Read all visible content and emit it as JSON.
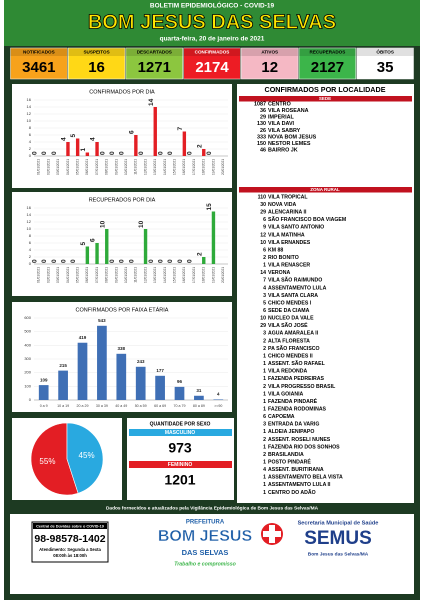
{
  "header": {
    "subtitle": "BOLETIM EPIDEMIOLÓGICO - COVID-19",
    "title": "BOM JESUS DAS SELVAS",
    "date": "quarta-feira, 20 de janeiro de 2021"
  },
  "stats": [
    {
      "label": "NOTIFICADOS",
      "value": 3461,
      "color": "#f7a21b"
    },
    {
      "label": "SUSPEITOS",
      "value": 16,
      "color": "#ffd816"
    },
    {
      "label": "DESCARTADOS",
      "value": 1271,
      "color": "#8cc63f"
    },
    {
      "label": "CONFIRMADOS",
      "value": 2174,
      "color": "#ed1c24"
    },
    {
      "label": "ATIVOS",
      "value": 12,
      "color": "#f5b8c4"
    },
    {
      "label": "RECUPERADOS",
      "value": 2127,
      "color": "#3cb54a"
    },
    {
      "label": "ÓBITOS",
      "value": 35,
      "color": "#ffffff"
    }
  ],
  "chart_data": [
    {
      "type": "bar",
      "title": "CONFIRMADOS POR DIA",
      "color": "#e31e24",
      "categories": [
        "01/01/2021",
        "02/01/2021",
        "03/01/2021",
        "04/01/2021",
        "05/01/2021",
        "06/01/2021",
        "07/01/2021",
        "08/01/2021",
        "09/01/2021",
        "10/01/2021",
        "11/01/2021",
        "12/01/2021",
        "13/01/2021",
        "14/01/2021",
        "15/01/2021",
        "16/01/2021",
        "17/01/2021",
        "18/01/2021",
        "19/01/2021",
        "20/01/2021"
      ],
      "values": [
        0,
        0,
        0,
        4,
        5,
        1,
        4,
        0,
        0,
        0,
        6,
        0,
        14,
        0,
        0,
        7,
        0,
        2,
        0,
        null
      ],
      "ylim": [
        0,
        16
      ],
      "yticks": [
        0,
        2,
        4,
        6,
        8,
        10,
        12,
        14,
        16
      ]
    },
    {
      "type": "bar",
      "title": "RECUPERADOS POR DIA",
      "color": "#2eaa3a",
      "categories": [
        "01/01/2021",
        "02/01/2021",
        "03/01/2021",
        "04/01/2021",
        "05/01/2021",
        "06/01/2021",
        "07/01/2021",
        "08/01/2021",
        "09/01/2021",
        "10/01/2021",
        "11/01/2021",
        "12/01/2021",
        "13/01/2021",
        "14/01/2021",
        "15/01/2021",
        "16/01/2021",
        "17/01/2021",
        "18/01/2021",
        "19/01/2021",
        "20/01/2021"
      ],
      "values": [
        0,
        0,
        0,
        0,
        0,
        5,
        6,
        10,
        0,
        0,
        0,
        10,
        0,
        0,
        0,
        0,
        0,
        2,
        15,
        null
      ],
      "ylim": [
        0,
        16
      ],
      "yticks": [
        0,
        2,
        4,
        6,
        8,
        10,
        12,
        14,
        16
      ]
    },
    {
      "type": "bar",
      "title": "CONFIRMADOS POR FAIXA ETÁRIA",
      "color": "#3f6fb5",
      "categories": [
        "0 a 9",
        "10 a 19",
        "20 a 29",
        "30 a 39",
        "40 a 49",
        "50 a 59",
        "60 a 69",
        "70 a 79",
        "80 a 89",
        ">=90"
      ],
      "values": [
        109,
        215,
        419,
        543,
        338,
        243,
        177,
        96,
        31,
        4
      ],
      "ylim": [
        0,
        600
      ],
      "yticks": [
        0,
        100,
        200,
        300,
        400,
        500,
        600
      ]
    },
    {
      "type": "pie",
      "values": [
        55,
        45
      ],
      "value_labels": [
        "55%",
        "45%"
      ],
      "colors": [
        "#e31e24",
        "#29a9e0"
      ]
    }
  ],
  "sex": {
    "title": "QUANTIDADE POR SEXO",
    "male_label": "MASCULINO",
    "male": 973,
    "female_label": "FEMININO",
    "female": 1201
  },
  "localidades": {
    "title": "CONFIRMADOS POR LOCALIDADE",
    "sede_label": "SEDE",
    "sede": [
      {
        "count": 1087,
        "name": "CENTRO"
      },
      {
        "count": 36,
        "name": "VILA ROSEANA"
      },
      {
        "count": 29,
        "name": "IMPERIAL"
      },
      {
        "count": 130,
        "name": "VILA DAVI"
      },
      {
        "count": 26,
        "name": "VILA SABRY"
      },
      {
        "count": 333,
        "name": "NOVA BOM JESUS"
      },
      {
        "count": 150,
        "name": "NESTOR LEMES"
      },
      {
        "count": 46,
        "name": "BAIRRO JK"
      }
    ],
    "rural_label": "ZONA RURAL",
    "rural": [
      {
        "count": 110,
        "name": "VILA TROPICAL"
      },
      {
        "count": 30,
        "name": "NOVA VIDA"
      },
      {
        "count": 29,
        "name": "ALENCARINA II"
      },
      {
        "count": 6,
        "name": "SÃO FRANCISCO BOA VIAGEM"
      },
      {
        "count": 9,
        "name": "VILA SANTO ANTONIO"
      },
      {
        "count": 12,
        "name": "VILA MATINHA"
      },
      {
        "count": 10,
        "name": "VILA ERNANDES"
      },
      {
        "count": 6,
        "name": "KM 88"
      },
      {
        "count": 2,
        "name": "RIO BONITO"
      },
      {
        "count": 1,
        "name": "VILA RENASCER"
      },
      {
        "count": 14,
        "name": "VERONA"
      },
      {
        "count": 7,
        "name": "VILA SÃO RAIMUNDO"
      },
      {
        "count": 4,
        "name": "ASSENTAMENTO LULA"
      },
      {
        "count": 3,
        "name": "VILA SANTA CLARA"
      },
      {
        "count": 5,
        "name": "CHICO MENDES I"
      },
      {
        "count": 6,
        "name": "SEDE DA CIAMA"
      },
      {
        "count": 10,
        "name": "NUCLEO DA VALE"
      },
      {
        "count": 29,
        "name": "VILA SÃO JOSÉ"
      },
      {
        "count": 3,
        "name": "AGUA AMARALEA II"
      },
      {
        "count": 2,
        "name": "ALTA FLORESTA"
      },
      {
        "count": 2,
        "name": "PA SÃO FRANCISCO"
      },
      {
        "count": 1,
        "name": "CHICO MENDES II"
      },
      {
        "count": 1,
        "name": "ASSENT. SÃO RAFAEL"
      },
      {
        "count": 1,
        "name": "VILA REDONDA"
      },
      {
        "count": 1,
        "name": "FAZENDA PEDREIRAS"
      },
      {
        "count": 2,
        "name": "VILA PROGRESSO BRASIL"
      },
      {
        "count": 1,
        "name": "VILA GOIANIA"
      },
      {
        "count": 1,
        "name": "FAZENDA PINDARÉ"
      },
      {
        "count": 1,
        "name": "FAZENDA RODOMINAS"
      },
      {
        "count": 6,
        "name": "CAPOEMA"
      },
      {
        "count": 3,
        "name": "ENTRADA DA VARIG"
      },
      {
        "count": 1,
        "name": "ALDEIA JENIPAPO"
      },
      {
        "count": 2,
        "name": "ASSENT. ROSELI NUNES"
      },
      {
        "count": 1,
        "name": "FAZENDA RIO DOS SONHOS"
      },
      {
        "count": 2,
        "name": "BRASILANDIA"
      },
      {
        "count": 1,
        "name": "POSTO PINDARÉ"
      },
      {
        "count": 4,
        "name": "ASSENT. BURITIRANA"
      },
      {
        "count": 1,
        "name": "ASSENTAMENTO BELA VISTA"
      },
      {
        "count": 1,
        "name": "ASSENTAMENTO LULA II"
      },
      {
        "count": 1,
        "name": "CENTRO DO ADÃO"
      }
    ]
  },
  "footer": {
    "source": "Dados fornecidos e atualizados pela Vigilância Epidemiológica de Bom Jesus das Selvas/MA",
    "help_title": "Central de Dúvidas sobre o COVID-19",
    "phone": "98-98578-1402",
    "hours_label": "Atendimento: Segunda a Sexta",
    "hours": "08:00h às 18:00h",
    "pref_top": "PREFEITURA",
    "pref_name": "BOM JESUS",
    "pref_sub": "DAS SELVAS",
    "pref_slogan": "Trabalho e compromisso",
    "semus_title": "Secretaria Municipal de Saúde",
    "semus_name": "SEMUS",
    "semus_city": "Bom Jesus das Selvas/MA"
  }
}
